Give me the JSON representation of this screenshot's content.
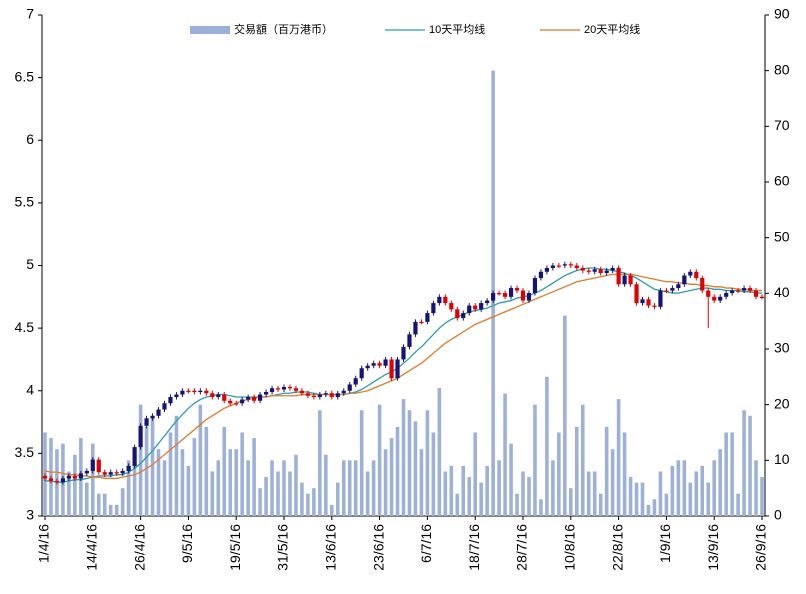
{
  "chart_data": {
    "type": "candlestick",
    "categories": [
      "1/4/16",
      null,
      null,
      null,
      null,
      null,
      null,
      null,
      "14/4/16",
      null,
      null,
      null,
      null,
      null,
      null,
      null,
      "26/4/16",
      null,
      null,
      null,
      null,
      null,
      null,
      null,
      "9/5/16",
      null,
      null,
      null,
      null,
      null,
      null,
      null,
      "19/5/16",
      null,
      null,
      null,
      null,
      null,
      null,
      null,
      "31/5/16",
      null,
      null,
      null,
      null,
      null,
      null,
      null,
      "13/6/16",
      null,
      null,
      null,
      null,
      null,
      null,
      null,
      "23/6/16",
      null,
      null,
      null,
      null,
      null,
      null,
      null,
      "6/7/16",
      null,
      null,
      null,
      null,
      null,
      null,
      null,
      "18/7/16",
      null,
      null,
      null,
      null,
      null,
      null,
      null,
      "28/7/16",
      null,
      null,
      null,
      null,
      null,
      null,
      null,
      "10/8/16",
      null,
      null,
      null,
      null,
      null,
      null,
      null,
      "22/8/16",
      null,
      null,
      null,
      null,
      null,
      null,
      null,
      "1/9/16",
      null,
      null,
      null,
      null,
      null,
      null,
      null,
      "13/9/16",
      null,
      null,
      null,
      null,
      null,
      null,
      null,
      "26/9/16"
    ],
    "ohlc": {
      "open": [
        3.32,
        3.3,
        3.28,
        3.27,
        3.3,
        3.32,
        3.3,
        3.34,
        3.36,
        3.45,
        3.35,
        3.33,
        3.35,
        3.34,
        3.36,
        3.4,
        3.55,
        3.72,
        3.78,
        3.8,
        3.85,
        3.9,
        3.95,
        3.97,
        4.0,
        4.0,
        3.99,
        4.0,
        3.98,
        3.95,
        3.97,
        3.92,
        3.9,
        3.9,
        3.93,
        3.95,
        3.92,
        3.97,
        3.99,
        4.02,
        4.01,
        4.03,
        4.02,
        4.0,
        3.98,
        3.96,
        3.95,
        3.97,
        3.98,
        3.95,
        3.98,
        4.0,
        4.05,
        4.1,
        4.18,
        4.2,
        4.22,
        4.2,
        4.25,
        4.1,
        4.25,
        4.35,
        4.45,
        4.55,
        4.55,
        4.62,
        4.7,
        4.75,
        4.7,
        4.65,
        4.58,
        4.62,
        4.68,
        4.65,
        4.7,
        4.72,
        4.78,
        4.78,
        4.75,
        4.82,
        4.8,
        4.72,
        4.78,
        4.9,
        4.95,
        4.98,
        5.0,
        5.0,
        5.01,
        5.0,
        4.98,
        4.96,
        4.95,
        4.97,
        4.94,
        4.96,
        4.98,
        4.85,
        4.92,
        4.85,
        4.7,
        4.73,
        4.68,
        4.67,
        4.8,
        4.8,
        4.82,
        4.85,
        4.92,
        4.95,
        4.9,
        4.8,
        4.75,
        4.72,
        4.75,
        4.78,
        4.8,
        4.8,
        4.82,
        4.8,
        4.75
      ],
      "high": [
        3.34,
        3.32,
        3.3,
        3.32,
        3.34,
        3.34,
        3.36,
        3.38,
        3.47,
        3.47,
        3.37,
        3.37,
        3.37,
        3.38,
        3.42,
        3.57,
        3.74,
        3.8,
        3.82,
        3.87,
        3.92,
        3.97,
        3.99,
        4.02,
        4.02,
        4.02,
        4.02,
        4.02,
        4.0,
        3.99,
        3.99,
        3.94,
        3.92,
        3.95,
        3.97,
        3.97,
        3.99,
        4.01,
        4.04,
        4.04,
        4.05,
        4.05,
        4.04,
        4.02,
        4.0,
        3.98,
        3.99,
        4.0,
        4.0,
        4.0,
        4.02,
        4.07,
        4.12,
        4.2,
        4.22,
        4.24,
        4.24,
        4.27,
        4.27,
        4.27,
        4.37,
        4.47,
        4.57,
        4.57,
        4.64,
        4.72,
        4.77,
        4.77,
        4.72,
        4.67,
        4.64,
        4.7,
        4.7,
        4.72,
        4.74,
        4.8,
        4.8,
        4.8,
        4.84,
        4.84,
        4.82,
        4.8,
        4.92,
        4.97,
        5.0,
        5.02,
        5.02,
        5.03,
        5.03,
        5.02,
        5.0,
        4.98,
        4.99,
        4.99,
        4.98,
        5.0,
        5.0,
        4.94,
        4.94,
        4.87,
        4.75,
        4.75,
        4.7,
        4.82,
        4.82,
        4.84,
        4.87,
        4.94,
        4.97,
        4.97,
        4.92,
        4.82,
        4.77,
        4.77,
        4.8,
        4.82,
        4.82,
        4.84,
        4.84,
        4.82,
        4.77
      ],
      "low": [
        3.28,
        3.26,
        3.25,
        3.25,
        3.28,
        3.28,
        3.28,
        3.32,
        3.34,
        3.33,
        3.31,
        3.31,
        3.32,
        3.32,
        3.34,
        3.38,
        3.53,
        3.7,
        3.76,
        3.78,
        3.83,
        3.88,
        3.93,
        3.95,
        3.98,
        3.97,
        3.97,
        3.96,
        3.93,
        3.93,
        3.9,
        3.88,
        3.88,
        3.88,
        3.91,
        3.9,
        3.9,
        3.95,
        3.97,
        3.99,
        3.99,
        4.0,
        3.98,
        3.96,
        3.94,
        3.93,
        3.93,
        3.95,
        3.93,
        3.93,
        3.96,
        3.98,
        4.03,
        4.08,
        4.16,
        4.18,
        4.18,
        4.18,
        4.08,
        4.08,
        4.23,
        4.33,
        4.43,
        4.53,
        4.53,
        4.6,
        4.68,
        4.68,
        4.63,
        4.56,
        4.56,
        4.6,
        4.63,
        4.63,
        4.68,
        4.7,
        4.76,
        4.73,
        4.73,
        4.78,
        4.7,
        4.7,
        4.76,
        4.88,
        4.93,
        4.96,
        4.98,
        4.98,
        4.98,
        4.96,
        4.94,
        4.93,
        4.93,
        4.92,
        4.92,
        4.94,
        4.83,
        4.83,
        4.83,
        4.68,
        4.68,
        4.66,
        4.65,
        4.65,
        4.78,
        4.78,
        4.8,
        4.83,
        4.9,
        4.88,
        4.78,
        4.5,
        4.7,
        4.7,
        4.73,
        4.76,
        4.78,
        4.78,
        4.78,
        4.73,
        4.73
      ],
      "close": [
        3.3,
        3.28,
        3.27,
        3.3,
        3.32,
        3.3,
        3.34,
        3.36,
        3.45,
        3.35,
        3.33,
        3.35,
        3.34,
        3.36,
        3.4,
        3.55,
        3.72,
        3.78,
        3.8,
        3.85,
        3.9,
        3.95,
        3.97,
        4.0,
        4.0,
        3.99,
        4.0,
        3.98,
        3.95,
        3.97,
        3.92,
        3.9,
        3.9,
        3.93,
        3.95,
        3.92,
        3.97,
        3.99,
        4.02,
        4.01,
        4.03,
        4.02,
        4.0,
        3.98,
        3.96,
        3.95,
        3.97,
        3.98,
        3.95,
        3.98,
        4.0,
        4.05,
        4.1,
        4.18,
        4.2,
        4.22,
        4.2,
        4.25,
        4.1,
        4.25,
        4.35,
        4.45,
        4.55,
        4.55,
        4.62,
        4.7,
        4.75,
        4.7,
        4.65,
        4.58,
        4.62,
        4.68,
        4.65,
        4.7,
        4.72,
        4.78,
        4.78,
        4.75,
        4.82,
        4.8,
        4.72,
        4.78,
        4.9,
        4.95,
        4.98,
        5.0,
        5.0,
        5.01,
        5.0,
        4.98,
        4.96,
        4.95,
        4.97,
        4.94,
        4.96,
        4.98,
        4.85,
        4.92,
        4.85,
        4.7,
        4.73,
        4.68,
        4.67,
        4.8,
        4.8,
        4.82,
        4.85,
        4.92,
        4.95,
        4.9,
        4.8,
        4.75,
        4.72,
        4.75,
        4.78,
        4.8,
        4.8,
        4.82,
        4.8,
        4.75,
        4.75
      ],
      "up_color": "#141478",
      "down_color": "#e00000"
    },
    "series": [
      {
        "name": "交易額（百万港币）",
        "type": "bar",
        "axis": "y2",
        "color": "#9db1d8",
        "values": [
          15,
          14,
          12,
          13,
          8,
          11,
          14,
          6,
          13,
          4,
          4,
          2,
          2,
          5,
          10,
          12,
          20,
          16,
          18,
          12,
          10,
          15,
          18,
          12,
          9,
          14,
          20,
          16,
          8,
          10,
          16,
          12,
          12,
          15,
          10,
          14,
          5,
          7,
          10,
          8,
          10,
          8,
          11,
          6,
          4,
          5,
          19,
          11,
          2,
          6,
          10,
          10,
          10,
          19,
          8,
          10,
          20,
          12,
          14,
          16,
          21,
          19,
          17,
          12,
          19,
          15,
          23,
          8,
          9,
          4,
          9,
          7,
          15,
          6,
          9,
          80,
          10,
          22,
          13,
          4,
          8,
          7,
          20,
          3,
          25,
          10,
          15,
          36,
          5,
          16,
          20,
          8,
          8,
          4,
          16,
          12,
          21,
          15,
          7,
          6,
          6,
          2,
          3,
          8,
          4,
          9,
          10,
          10,
          6,
          8,
          9,
          6,
          10,
          12,
          15,
          15,
          4,
          19,
          18,
          10,
          7
        ]
      },
      {
        "name": "10天平均线",
        "type": "line",
        "color": "#2a9db0",
        "values": [
          3.28,
          3.28,
          3.27,
          3.27,
          3.28,
          3.29,
          3.29,
          3.3,
          3.31,
          3.32,
          3.32,
          3.32,
          3.33,
          3.33,
          3.35,
          3.38,
          3.42,
          3.47,
          3.52,
          3.58,
          3.64,
          3.7,
          3.76,
          3.81,
          3.86,
          3.9,
          3.93,
          3.95,
          3.96,
          3.97,
          3.97,
          3.96,
          3.95,
          3.95,
          3.95,
          3.95,
          3.95,
          3.95,
          3.96,
          3.97,
          3.98,
          3.98,
          3.99,
          3.99,
          3.99,
          3.98,
          3.97,
          3.97,
          3.97,
          3.97,
          3.97,
          3.98,
          3.99,
          4.01,
          4.04,
          4.07,
          4.1,
          4.13,
          4.15,
          4.18,
          4.22,
          4.26,
          4.31,
          4.35,
          4.4,
          4.45,
          4.5,
          4.54,
          4.57,
          4.59,
          4.61,
          4.63,
          4.64,
          4.65,
          4.66,
          4.68,
          4.7,
          4.71,
          4.72,
          4.74,
          4.75,
          4.76,
          4.78,
          4.8,
          4.83,
          4.86,
          4.89,
          4.92,
          4.94,
          4.96,
          4.97,
          4.98,
          4.98,
          4.97,
          4.97,
          4.96,
          4.95,
          4.94,
          4.92,
          4.9,
          4.87,
          4.84,
          4.81,
          4.8,
          4.79,
          4.78,
          4.78,
          4.79,
          4.8,
          4.81,
          4.82,
          4.82,
          4.81,
          4.81,
          4.8,
          4.8,
          4.8,
          4.79,
          4.79,
          4.78,
          4.78
        ]
      },
      {
        "name": "20天平均线",
        "type": "line",
        "color": "#e07b2a",
        "values": [
          3.36,
          3.35,
          3.35,
          3.34,
          3.33,
          3.33,
          3.32,
          3.32,
          3.31,
          3.31,
          3.3,
          3.3,
          3.3,
          3.31,
          3.32,
          3.33,
          3.35,
          3.38,
          3.41,
          3.45,
          3.49,
          3.53,
          3.57,
          3.61,
          3.65,
          3.69,
          3.73,
          3.77,
          3.8,
          3.83,
          3.86,
          3.88,
          3.9,
          3.92,
          3.93,
          3.94,
          3.95,
          3.95,
          3.96,
          3.96,
          3.96,
          3.96,
          3.96,
          3.97,
          3.97,
          3.97,
          3.97,
          3.97,
          3.97,
          3.97,
          3.97,
          3.98,
          3.98,
          3.99,
          4.0,
          4.02,
          4.04,
          4.06,
          4.08,
          4.1,
          4.13,
          4.16,
          4.19,
          4.22,
          4.26,
          4.3,
          4.34,
          4.38,
          4.41,
          4.44,
          4.47,
          4.5,
          4.53,
          4.55,
          4.57,
          4.59,
          4.61,
          4.63,
          4.65,
          4.67,
          4.69,
          4.71,
          4.73,
          4.75,
          4.77,
          4.79,
          4.81,
          4.83,
          4.85,
          4.87,
          4.88,
          4.89,
          4.9,
          4.91,
          4.92,
          4.93,
          4.93,
          4.93,
          4.93,
          4.92,
          4.91,
          4.9,
          4.89,
          4.88,
          4.87,
          4.87,
          4.86,
          4.86,
          4.85,
          4.85,
          4.84,
          4.84,
          4.83,
          4.83,
          4.82,
          4.82,
          4.81,
          4.81,
          4.8,
          4.8,
          4.8
        ]
      }
    ],
    "ylim": [
      3,
      7
    ],
    "yticks": [
      3,
      3.5,
      4,
      4.5,
      5,
      5.5,
      6,
      6.5,
      7
    ],
    "y2lim": [
      0,
      90
    ],
    "y2ticks": [
      0,
      10,
      20,
      30,
      40,
      50,
      60,
      70,
      80,
      90
    ]
  }
}
